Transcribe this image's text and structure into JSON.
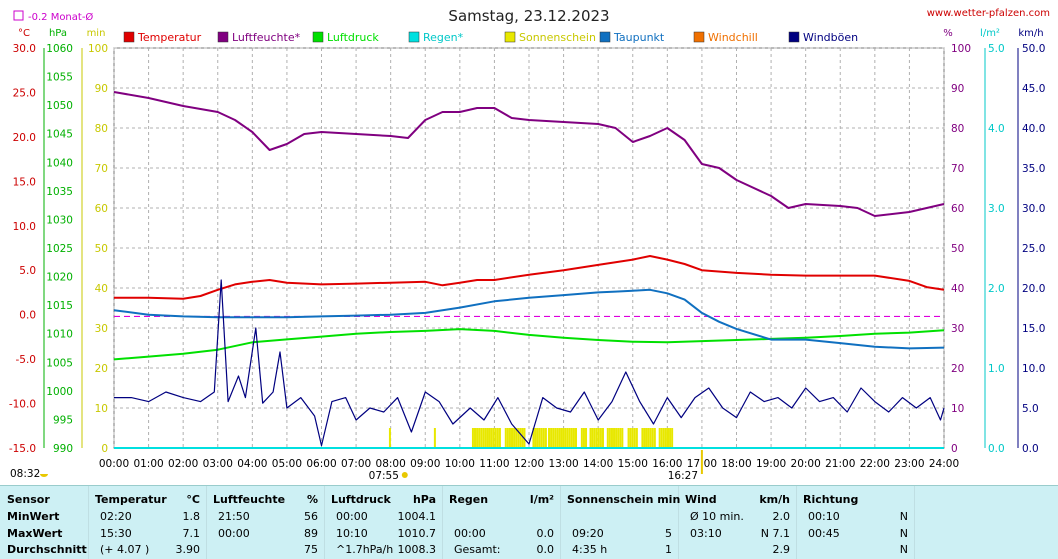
{
  "header": {
    "title": "Samstag, 23.12.2023",
    "site": "www.wetter-pfalzen.com",
    "monthly_avg_label": "-0.2 Monat-Ø"
  },
  "axes": {
    "left_units": [
      "°C",
      "hPa",
      "min"
    ],
    "right_units": [
      "%",
      "l/m²",
      "km/h"
    ],
    "temp_ticks": [
      "30.0",
      "25.0",
      "20.0",
      "15.0",
      "10.0",
      "5.0",
      "0.0",
      "-5.0",
      "-10.0",
      "-15.0"
    ],
    "pressure_ticks": [
      "1060",
      "1055",
      "1050",
      "1045",
      "1040",
      "1035",
      "1030",
      "1025",
      "1020",
      "1015",
      "1010",
      "1005",
      "1000",
      "995",
      "990"
    ],
    "minutes_ticks": [
      "100",
      "90",
      "80",
      "70",
      "60",
      "50",
      "40",
      "30",
      "20",
      "10",
      "0"
    ],
    "percent_ticks": [
      "100",
      "90",
      "80",
      "70",
      "60",
      "50",
      "40",
      "30",
      "20",
      "10",
      "0"
    ],
    "rain_ticks": [
      "5.0",
      "4.0",
      "3.0",
      "2.0",
      "1.0",
      "0.0"
    ],
    "wind_ticks": [
      "50.0",
      "45.0",
      "40.0",
      "35.0",
      "30.0",
      "25.0",
      "20.0",
      "15.0",
      "10.0",
      "5.0",
      "0.0"
    ],
    "x_ticks": [
      "00:00",
      "01:00",
      "02:00",
      "03:00",
      "04:00",
      "05:00",
      "06:00",
      "07:00",
      "08:00",
      "09:00",
      "10:00",
      "11:00",
      "12:00",
      "13:00",
      "14:00",
      "15:00",
      "16:00",
      "17:00",
      "18:00",
      "19:00",
      "20:00",
      "21:00",
      "22:00",
      "23:00",
      "24:00"
    ]
  },
  "sun": {
    "sunrise": "07:55",
    "sunset": "16:27",
    "moon": "08:32"
  },
  "legend": [
    {
      "name": "Temperatur",
      "color": "#e00000"
    },
    {
      "name": "Luftfeuchte*",
      "color": "#800080"
    },
    {
      "name": "Luftdruck",
      "color": "#00e000"
    },
    {
      "name": "Regen*",
      "color": "#00e0e0"
    },
    {
      "name": "Sonnenschein",
      "color": "#e8e800"
    },
    {
      "name": "Taupunkt",
      "color": "#1070c0"
    },
    {
      "name": "Windchill",
      "color": "#f07000"
    },
    {
      "name": "Windböen",
      "color": "#000080"
    }
  ],
  "chart_data": {
    "type": "line",
    "title": "Samstag, 23.12.2023",
    "x_unit": "hours",
    "xlim": [
      0,
      24
    ],
    "grid": true,
    "legend_position": "top",
    "axes_ranges": {
      "temperature_c": [
        -15,
        30
      ],
      "pressure_hpa": [
        990,
        1060
      ],
      "sunshine_min": [
        0,
        100
      ],
      "humidity_pct": [
        0,
        100
      ],
      "rain_lm2": [
        0,
        5
      ],
      "wind_kmh": [
        0,
        50
      ]
    },
    "monthly_avg_temperature": -0.2,
    "series": [
      {
        "name": "Temperatur",
        "axis": "temperature_c",
        "color": "#e00000",
        "points": [
          [
            0,
            1.9
          ],
          [
            1,
            1.9
          ],
          [
            2,
            1.8
          ],
          [
            2.5,
            2.1
          ],
          [
            3,
            2.8
          ],
          [
            3.5,
            3.4
          ],
          [
            4,
            3.7
          ],
          [
            4.5,
            3.9
          ],
          [
            5,
            3.6
          ],
          [
            6,
            3.4
          ],
          [
            7,
            3.5
          ],
          [
            8,
            3.6
          ],
          [
            9,
            3.7
          ],
          [
            9.5,
            3.3
          ],
          [
            10,
            3.6
          ],
          [
            10.5,
            3.9
          ],
          [
            11,
            3.9
          ],
          [
            12,
            4.5
          ],
          [
            13,
            5.0
          ],
          [
            14,
            5.6
          ],
          [
            14.5,
            5.9
          ],
          [
            15,
            6.2
          ],
          [
            15.5,
            6.6
          ],
          [
            16,
            6.2
          ],
          [
            16.5,
            5.7
          ],
          [
            17,
            5.0
          ],
          [
            18,
            4.7
          ],
          [
            19,
            4.5
          ],
          [
            20,
            4.4
          ],
          [
            21,
            4.4
          ],
          [
            22,
            4.4
          ],
          [
            23,
            3.8
          ],
          [
            23.5,
            3.1
          ],
          [
            24,
            2.8
          ]
        ]
      },
      {
        "name": "Luftfeuchte*",
        "axis": "humidity_pct",
        "color": "#800080",
        "points": [
          [
            0,
            89
          ],
          [
            1,
            87.5
          ],
          [
            2,
            85.5
          ],
          [
            3,
            84
          ],
          [
            3.5,
            82
          ],
          [
            4,
            79
          ],
          [
            4.5,
            74.5
          ],
          [
            5,
            76
          ],
          [
            5.5,
            78.5
          ],
          [
            6,
            79
          ],
          [
            7,
            78.5
          ],
          [
            8,
            78
          ],
          [
            8.5,
            77.5
          ],
          [
            9,
            82
          ],
          [
            9.5,
            84
          ],
          [
            10,
            84
          ],
          [
            10.5,
            85
          ],
          [
            11,
            85
          ],
          [
            11.5,
            82.5
          ],
          [
            12,
            82
          ],
          [
            13,
            81.5
          ],
          [
            14,
            81
          ],
          [
            14.5,
            80
          ],
          [
            15,
            76.5
          ],
          [
            15.5,
            78
          ],
          [
            16,
            80
          ],
          [
            16.5,
            77
          ],
          [
            17,
            71
          ],
          [
            17.5,
            70
          ],
          [
            18,
            67
          ],
          [
            19,
            63
          ],
          [
            19.5,
            60
          ],
          [
            20,
            61
          ],
          [
            21,
            60.5
          ],
          [
            21.5,
            60
          ],
          [
            22,
            58
          ],
          [
            23,
            59
          ],
          [
            23.5,
            60
          ],
          [
            24,
            61
          ]
        ]
      },
      {
        "name": "Luftdruck",
        "axis": "pressure_hpa",
        "color": "#00e000",
        "points": [
          [
            0,
            1005.5
          ],
          [
            1,
            1006
          ],
          [
            2,
            1006.5
          ],
          [
            3,
            1007.2
          ],
          [
            4,
            1008.5
          ],
          [
            5,
            1009
          ],
          [
            6,
            1009.5
          ],
          [
            7,
            1010
          ],
          [
            8,
            1010.3
          ],
          [
            9,
            1010.5
          ],
          [
            10,
            1010.8
          ],
          [
            11,
            1010.5
          ],
          [
            12,
            1009.8
          ],
          [
            13,
            1009.3
          ],
          [
            14,
            1008.9
          ],
          [
            15,
            1008.6
          ],
          [
            16,
            1008.5
          ],
          [
            17,
            1008.7
          ],
          [
            18,
            1008.9
          ],
          [
            19,
            1009.1
          ],
          [
            20,
            1009.3
          ],
          [
            21,
            1009.6
          ],
          [
            22,
            1010
          ],
          [
            23,
            1010.2
          ],
          [
            24,
            1010.6
          ]
        ]
      },
      {
        "name": "Taupunkt",
        "axis": "temperature_c",
        "color": "#1070c0",
        "points": [
          [
            0,
            0.5
          ],
          [
            1,
            0.0
          ],
          [
            2,
            -0.2
          ],
          [
            3,
            -0.3
          ],
          [
            4,
            -0.3
          ],
          [
            5,
            -0.3
          ],
          [
            6,
            -0.2
          ],
          [
            7,
            -0.1
          ],
          [
            8,
            0
          ],
          [
            9,
            0.2
          ],
          [
            10,
            0.8
          ],
          [
            11,
            1.5
          ],
          [
            12,
            1.9
          ],
          [
            13,
            2.2
          ],
          [
            14,
            2.5
          ],
          [
            14.5,
            2.6
          ],
          [
            15,
            2.7
          ],
          [
            15.5,
            2.8
          ],
          [
            16,
            2.4
          ],
          [
            16.5,
            1.7
          ],
          [
            17,
            0.2
          ],
          [
            17.5,
            -0.8
          ],
          [
            18,
            -1.6
          ],
          [
            19,
            -2.8
          ],
          [
            20,
            -2.8
          ],
          [
            21,
            -3.2
          ],
          [
            22,
            -3.6
          ],
          [
            23,
            -3.8
          ],
          [
            24,
            -3.7
          ]
        ]
      },
      {
        "name": "Windböen",
        "axis": "wind_kmh",
        "color": "#000080",
        "points": [
          [
            0,
            6.3
          ],
          [
            0.5,
            6.3
          ],
          [
            1,
            5.8
          ],
          [
            1.5,
            7
          ],
          [
            2,
            6.3
          ],
          [
            2.5,
            5.8
          ],
          [
            2.9,
            7
          ],
          [
            3.1,
            21
          ],
          [
            3.3,
            5.8
          ],
          [
            3.6,
            9
          ],
          [
            3.8,
            6.3
          ],
          [
            4.1,
            15
          ],
          [
            4.3,
            5.6
          ],
          [
            4.6,
            7
          ],
          [
            4.8,
            12
          ],
          [
            5,
            5
          ],
          [
            5.4,
            6.3
          ],
          [
            5.8,
            4
          ],
          [
            6,
            0.3
          ],
          [
            6.3,
            5.8
          ],
          [
            6.7,
            6.3
          ],
          [
            7,
            3.5
          ],
          [
            7.4,
            5
          ],
          [
            7.8,
            4.5
          ],
          [
            8.2,
            6.3
          ],
          [
            8.6,
            2
          ],
          [
            9,
            7
          ],
          [
            9.4,
            5.8
          ],
          [
            9.8,
            3
          ],
          [
            10.3,
            5
          ],
          [
            10.7,
            3.5
          ],
          [
            11.1,
            6.3
          ],
          [
            11.5,
            3
          ],
          [
            12,
            0.5
          ],
          [
            12.4,
            6.3
          ],
          [
            12.8,
            5
          ],
          [
            13.2,
            4.5
          ],
          [
            13.6,
            7
          ],
          [
            14,
            3.5
          ],
          [
            14.4,
            5.8
          ],
          [
            14.8,
            9.5
          ],
          [
            15.2,
            5.8
          ],
          [
            15.6,
            3
          ],
          [
            16,
            6.3
          ],
          [
            16.4,
            3.8
          ],
          [
            16.8,
            6.3
          ],
          [
            17.2,
            7.5
          ],
          [
            17.6,
            5
          ],
          [
            18,
            3.8
          ],
          [
            18.4,
            7
          ],
          [
            18.8,
            5.8
          ],
          [
            19.2,
            6.3
          ],
          [
            19.6,
            5
          ],
          [
            20,
            7.5
          ],
          [
            20.4,
            5.8
          ],
          [
            20.8,
            6.3
          ],
          [
            21.2,
            4.5
          ],
          [
            21.6,
            7.5
          ],
          [
            22,
            5.8
          ],
          [
            22.4,
            4.5
          ],
          [
            22.8,
            6.3
          ],
          [
            23.2,
            5
          ],
          [
            23.6,
            6.3
          ],
          [
            23.9,
            3.5
          ],
          [
            24,
            5
          ]
        ]
      },
      {
        "name": "Regen*",
        "axis": "rain_lm2",
        "color": "#00e0e0",
        "points": [
          [
            0,
            0
          ],
          [
            24,
            0
          ]
        ]
      }
    ],
    "sunshine_bars": [
      {
        "start": 7.95,
        "end": 8.0
      },
      {
        "start": 9.25,
        "end": 9.3
      },
      {
        "start": 10.35,
        "end": 11.15
      },
      {
        "start": 11.3,
        "end": 11.9
      },
      {
        "start": 12.1,
        "end": 12.5
      },
      {
        "start": 12.55,
        "end": 13.35
      },
      {
        "start": 13.5,
        "end": 13.65
      },
      {
        "start": 13.75,
        "end": 14.15
      },
      {
        "start": 14.25,
        "end": 14.7
      },
      {
        "start": 14.85,
        "end": 15.1
      },
      {
        "start": 15.25,
        "end": 15.65
      },
      {
        "start": 15.75,
        "end": 16.15
      }
    ]
  },
  "stats": {
    "row_labels": [
      "Sensor",
      "MinWert",
      "MaxWert",
      "Durchschnitt"
    ],
    "temperature": {
      "head": "Temperatur",
      "unit": "°C",
      "rows": [
        [
          "02:20",
          "1.8"
        ],
        [
          "15:30",
          "7.1"
        ],
        [
          "(+ 4.07 )",
          "3.90"
        ]
      ]
    },
    "humidity": {
      "head": "Luftfeuchte",
      "unit": "%",
      "rows": [
        [
          "21:50",
          "56"
        ],
        [
          "00:00",
          "89"
        ],
        [
          "",
          "75"
        ]
      ]
    },
    "pressure": {
      "head": "Luftdruck",
      "unit": "hPa",
      "rows": [
        [
          "00:00",
          "1004.1"
        ],
        [
          "10:10",
          "1010.7"
        ],
        [
          "^1.7hPa/h",
          "1008.3"
        ]
      ]
    },
    "rain": {
      "head": "Regen",
      "unit": "l/m²",
      "rows": [
        [
          "",
          ""
        ],
        [
          "00:00",
          "0.0"
        ],
        [
          "Gesamt:",
          "0.0"
        ]
      ]
    },
    "sunshine": {
      "head": "Sonnenschein min",
      "unit": "",
      "rows": [
        [
          "",
          ""
        ],
        [
          "09:20",
          "5"
        ],
        [
          "4:35 h",
          "1"
        ]
      ]
    },
    "wind": {
      "head": "Wind",
      "unit": "km/h",
      "rows": [
        [
          "Ø 10 min.",
          "2.0"
        ],
        [
          "03:10",
          "N 7.1"
        ],
        [
          "",
          "2.9"
        ]
      ]
    },
    "direction": {
      "head": "Richtung",
      "unit": "",
      "rows": [
        [
          "00:10",
          "N"
        ],
        [
          "00:45",
          "N"
        ],
        [
          "",
          "N"
        ]
      ]
    }
  }
}
